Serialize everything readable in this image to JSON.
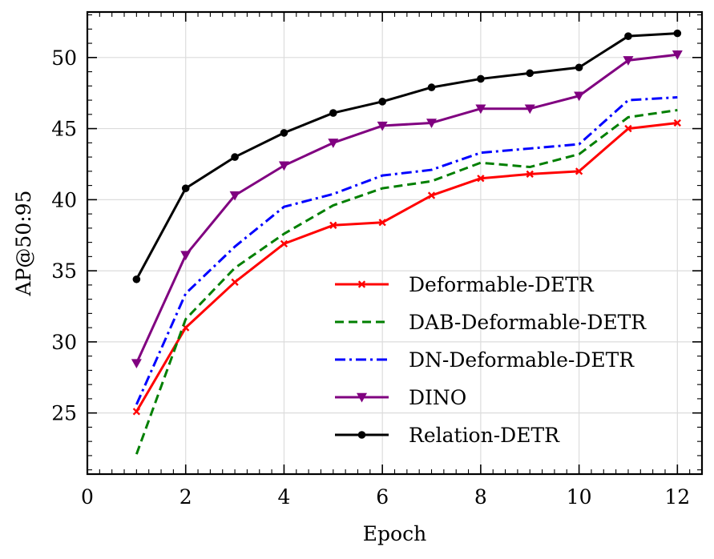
{
  "chart_data": {
    "type": "line",
    "title": "",
    "xlabel": "Epoch",
    "ylabel": "AP@50:95",
    "xlim": [
      0,
      12.5
    ],
    "ylim": [
      20.7,
      53.2
    ],
    "xticks": [
      0,
      2,
      4,
      6,
      8,
      10,
      12
    ],
    "yticks": [
      25,
      30,
      35,
      40,
      45,
      50
    ],
    "grid": true,
    "legend_position": "lower-right",
    "series": [
      {
        "name": "Deformable-DETR",
        "color": "#ff0000",
        "dash": "solid",
        "marker": "x",
        "x": [
          1,
          2,
          3,
          4,
          5,
          6,
          7,
          8,
          9,
          10,
          11,
          12
        ],
        "values": [
          25.1,
          31.0,
          34.2,
          36.9,
          38.2,
          38.4,
          40.3,
          41.5,
          41.8,
          42.0,
          45.0,
          45.4
        ]
      },
      {
        "name": "DAB-Deformable-DETR",
        "color": "#007f00",
        "dash": "dashed",
        "marker": "none",
        "x": [
          1,
          2,
          3,
          4,
          5,
          6,
          7,
          8,
          9,
          10,
          11,
          12
        ],
        "values": [
          22.1,
          31.6,
          35.2,
          37.6,
          39.6,
          40.8,
          41.3,
          42.6,
          42.3,
          43.2,
          45.8,
          46.3
        ]
      },
      {
        "name": "DN-Deformable-DETR",
        "color": "#0000ff",
        "dash": "dashdot",
        "marker": "none",
        "x": [
          1,
          2,
          3,
          4,
          5,
          6,
          7,
          8,
          9,
          10,
          11,
          12
        ],
        "values": [
          25.6,
          33.4,
          36.7,
          39.5,
          40.4,
          41.7,
          42.1,
          43.3,
          43.6,
          43.9,
          47.0,
          47.2
        ]
      },
      {
        "name": "DINO",
        "color": "#800080",
        "dash": "solid",
        "marker": "triangle-down",
        "x": [
          1,
          2,
          3,
          4,
          5,
          6,
          7,
          8,
          9,
          10,
          11,
          12
        ],
        "values": [
          28.5,
          36.1,
          40.3,
          42.4,
          44.0,
          45.2,
          45.4,
          46.4,
          46.4,
          47.3,
          49.8,
          50.2
        ]
      },
      {
        "name": "Relation-DETR",
        "color": "#000000",
        "dash": "solid",
        "marker": "circle",
        "x": [
          1,
          2,
          3,
          4,
          5,
          6,
          7,
          8,
          9,
          10,
          11,
          12
        ],
        "values": [
          34.4,
          40.8,
          43.0,
          44.7,
          46.1,
          46.9,
          47.9,
          48.5,
          48.9,
          49.3,
          51.5,
          51.7
        ]
      }
    ]
  }
}
